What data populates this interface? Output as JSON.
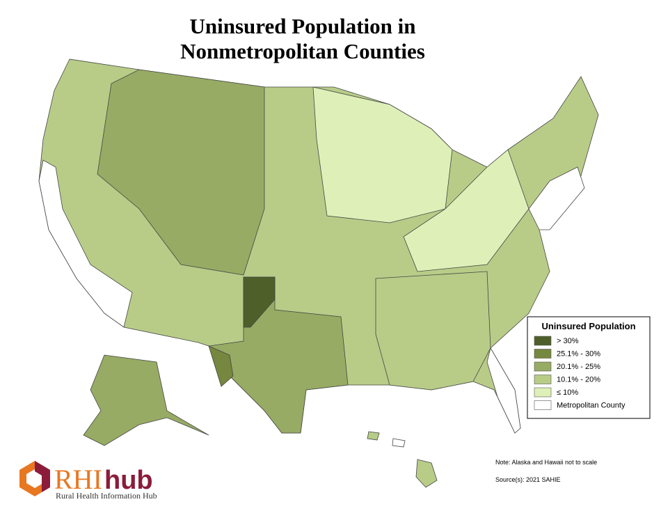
{
  "header": {
    "title_lines": [
      "Uninsured Population in",
      "Nonmetropolitan Counties"
    ]
  },
  "legend": {
    "title": "Uninsured Population",
    "items": [
      {
        "label": "> 30%",
        "color": "#4f5f29"
      },
      {
        "label": "25.1% - 30%",
        "color": "#76873f"
      },
      {
        "label": "20.1% - 25%",
        "color": "#97ab64"
      },
      {
        "label": "10.1% - 20%",
        "color": "#b8cc88"
      },
      {
        "label": "≤ 10%",
        "color": "#def0b8"
      },
      {
        "label": "Metropolitan County",
        "color": "#ffffff"
      }
    ]
  },
  "notes": {
    "scale": "Note: Alaska and Hawaii not to scale",
    "source": "Source(s): 2021 SAHIE"
  },
  "logo": {
    "brand_rhi": "RHI",
    "brand_hub": "hub",
    "subtitle": "Rural Health Information Hub"
  }
}
